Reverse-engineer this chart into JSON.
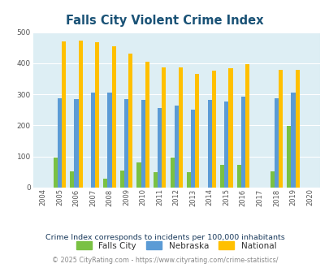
{
  "title": "Falls City Violent Crime Index",
  "years": [
    2004,
    2005,
    2006,
    2007,
    2008,
    2009,
    2010,
    2011,
    2012,
    2013,
    2014,
    2015,
    2016,
    2017,
    2018,
    2019,
    2020
  ],
  "falls_city": [
    0,
    97,
    52,
    0,
    30,
    55,
    80,
    49,
    97,
    50,
    0,
    74,
    74,
    0,
    52,
    198,
    0
  ],
  "nebraska": [
    0,
    288,
    284,
    305,
    305,
    285,
    282,
    257,
    263,
    252,
    281,
    276,
    292,
    0,
    288,
    305,
    0
  ],
  "national": [
    0,
    469,
    474,
    467,
    455,
    431,
    405,
    387,
    387,
    367,
    377,
    383,
    397,
    0,
    379,
    379,
    0
  ],
  "falls_city_color": "#7ac143",
  "nebraska_color": "#5b9bd5",
  "national_color": "#ffc000",
  "bg_color": "#ddeef4",
  "title_color": "#1a5276",
  "ylabel_max": 500,
  "yticks": [
    0,
    100,
    200,
    300,
    400,
    500
  ],
  "subtitle": "Crime Index corresponds to incidents per 100,000 inhabitants",
  "footer": "© 2025 CityRating.com - https://www.cityrating.com/crime-statistics/",
  "bar_width": 0.25
}
